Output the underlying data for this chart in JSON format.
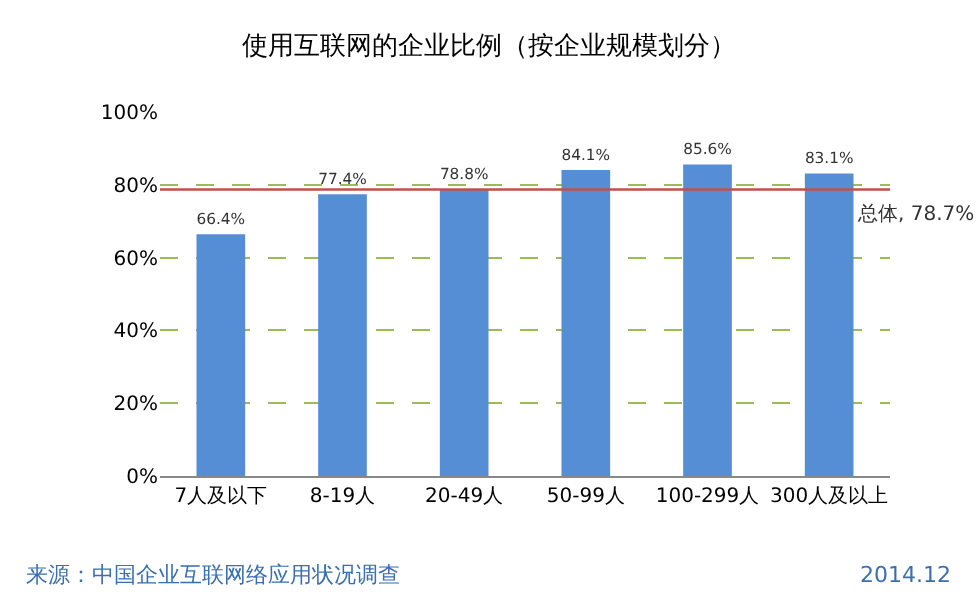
{
  "chart_data": {
    "type": "bar",
    "title": "使用互联网的企业比例（按企业规模划分）",
    "categories": [
      "7人及以下",
      "8-19人",
      "20-49人",
      "50-99人",
      "100-299人",
      "300人及以上"
    ],
    "values": [
      66.4,
      77.4,
      78.8,
      84.1,
      85.6,
      83.1
    ],
    "value_labels": [
      "66.4%",
      "77.4%",
      "78.8%",
      "84.1%",
      "85.6%",
      "83.1%"
    ],
    "color": "#558ed5",
    "ylim": [
      0,
      100
    ],
    "yticks": [
      {
        "value": 0,
        "label": "0%"
      },
      {
        "value": 20,
        "label": "20%"
      },
      {
        "value": 40,
        "label": "40%"
      },
      {
        "value": 60,
        "label": "60%"
      },
      {
        "value": 80,
        "label": "80%"
      },
      {
        "value": 100,
        "label": "100%"
      }
    ],
    "grid": "y",
    "ref_lines": [
      {
        "axis": "y",
        "value": 78.7,
        "label": "总体, 78.7%",
        "color": "#c0504d"
      }
    ],
    "annotations": [
      "来源：中国企业互联网络应用状况调查",
      "2014.12"
    ]
  }
}
